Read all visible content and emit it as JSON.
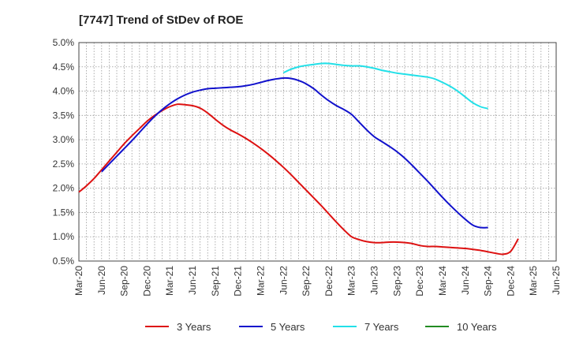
{
  "chart_data": {
    "type": "line",
    "title": "[7747]  Trend of StDev of ROE",
    "xlabel": "",
    "ylabel": "",
    "ylim": [
      0.5,
      5.0
    ],
    "y_ticks": [
      "5.0%",
      "4.5%",
      "4.0%",
      "3.5%",
      "3.0%",
      "2.5%",
      "2.0%",
      "1.5%",
      "1.0%",
      "0.5%"
    ],
    "y_tick_values": [
      5.0,
      4.5,
      4.0,
      3.5,
      3.0,
      2.5,
      2.0,
      1.5,
      1.0,
      0.5
    ],
    "x_ticks": [
      "Mar-20",
      "Jun-20",
      "Sep-20",
      "Dec-20",
      "Mar-21",
      "Jun-21",
      "Sep-21",
      "Dec-21",
      "Mar-22",
      "Jun-22",
      "Sep-22",
      "Dec-22",
      "Mar-23",
      "Jun-23",
      "Sep-23",
      "Dec-23",
      "Mar-24",
      "Jun-24",
      "Sep-24",
      "Dec-24",
      "Mar-25",
      "Jun-25"
    ],
    "grid": true,
    "legend_position": "bottom",
    "series": [
      {
        "name": "3 Years",
        "color": "#dd1111",
        "points": [
          [
            "Mar-20",
            1.92
          ],
          [
            "Apr-20",
            2.05
          ],
          [
            "May-20",
            2.2
          ],
          [
            "Jun-20",
            2.38
          ],
          [
            "Jul-20",
            2.56
          ],
          [
            "Aug-20",
            2.74
          ],
          [
            "Sep-20",
            2.92
          ],
          [
            "Oct-20",
            3.08
          ],
          [
            "Nov-20",
            3.23
          ],
          [
            "Dec-20",
            3.38
          ],
          [
            "Jan-21",
            3.5
          ],
          [
            "Feb-21",
            3.6
          ],
          [
            "Mar-21",
            3.68
          ],
          [
            "Apr-21",
            3.73
          ],
          [
            "May-21",
            3.72
          ],
          [
            "Jun-21",
            3.7
          ],
          [
            "Jul-21",
            3.65
          ],
          [
            "Aug-21",
            3.55
          ],
          [
            "Sep-21",
            3.42
          ],
          [
            "Oct-21",
            3.3
          ],
          [
            "Nov-21",
            3.2
          ],
          [
            "Dec-21",
            3.12
          ],
          [
            "Jan-22",
            3.03
          ],
          [
            "Feb-22",
            2.93
          ],
          [
            "Mar-22",
            2.82
          ],
          [
            "Apr-22",
            2.7
          ],
          [
            "May-22",
            2.57
          ],
          [
            "Jun-22",
            2.43
          ],
          [
            "Jul-22",
            2.28
          ],
          [
            "Aug-22",
            2.12
          ],
          [
            "Sep-22",
            1.96
          ],
          [
            "Oct-22",
            1.8
          ],
          [
            "Nov-22",
            1.64
          ],
          [
            "Dec-22",
            1.47
          ],
          [
            "Jan-23",
            1.3
          ],
          [
            "Feb-23",
            1.14
          ],
          [
            "Mar-23",
            1.0
          ],
          [
            "Apr-23",
            0.94
          ],
          [
            "May-23",
            0.9
          ],
          [
            "Jun-23",
            0.88
          ],
          [
            "Jul-23",
            0.88
          ],
          [
            "Aug-23",
            0.89
          ],
          [
            "Sep-23",
            0.89
          ],
          [
            "Oct-23",
            0.88
          ],
          [
            "Nov-23",
            0.86
          ],
          [
            "Dec-23",
            0.82
          ],
          [
            "Jan-24",
            0.8
          ],
          [
            "Feb-24",
            0.8
          ],
          [
            "Mar-24",
            0.79
          ],
          [
            "Apr-24",
            0.78
          ],
          [
            "May-24",
            0.77
          ],
          [
            "Jun-24",
            0.76
          ],
          [
            "Jul-24",
            0.74
          ],
          [
            "Aug-24",
            0.72
          ],
          [
            "Sep-24",
            0.69
          ],
          [
            "Oct-24",
            0.66
          ],
          [
            "Nov-24",
            0.64
          ],
          [
            "Dec-24",
            0.7
          ],
          [
            "Jan-25",
            0.96
          ]
        ]
      },
      {
        "name": "5 Years",
        "color": "#1111cc",
        "points": [
          [
            "Jun-20",
            2.34
          ],
          [
            "Jul-20",
            2.5
          ],
          [
            "Aug-20",
            2.66
          ],
          [
            "Sep-20",
            2.82
          ],
          [
            "Oct-20",
            2.98
          ],
          [
            "Nov-20",
            3.15
          ],
          [
            "Dec-20",
            3.32
          ],
          [
            "Jan-21",
            3.48
          ],
          [
            "Feb-21",
            3.62
          ],
          [
            "Mar-21",
            3.74
          ],
          [
            "Apr-21",
            3.84
          ],
          [
            "May-21",
            3.92
          ],
          [
            "Jun-21",
            3.98
          ],
          [
            "Jul-21",
            4.02
          ],
          [
            "Aug-21",
            4.05
          ],
          [
            "Sep-21",
            4.06
          ],
          [
            "Oct-21",
            4.07
          ],
          [
            "Nov-21",
            4.08
          ],
          [
            "Dec-21",
            4.09
          ],
          [
            "Jan-22",
            4.11
          ],
          [
            "Feb-22",
            4.14
          ],
          [
            "Mar-22",
            4.18
          ],
          [
            "Apr-22",
            4.22
          ],
          [
            "May-22",
            4.25
          ],
          [
            "Jun-22",
            4.27
          ],
          [
            "Jul-22",
            4.26
          ],
          [
            "Aug-22",
            4.22
          ],
          [
            "Sep-22",
            4.15
          ],
          [
            "Oct-22",
            4.05
          ],
          [
            "Nov-22",
            3.92
          ],
          [
            "Dec-22",
            3.8
          ],
          [
            "Jan-23",
            3.7
          ],
          [
            "Feb-23",
            3.62
          ],
          [
            "Mar-23",
            3.52
          ],
          [
            "Apr-23",
            3.36
          ],
          [
            "May-23",
            3.2
          ],
          [
            "Jun-23",
            3.06
          ],
          [
            "Jul-23",
            2.96
          ],
          [
            "Aug-23",
            2.86
          ],
          [
            "Sep-23",
            2.75
          ],
          [
            "Oct-23",
            2.62
          ],
          [
            "Nov-23",
            2.47
          ],
          [
            "Dec-23",
            2.31
          ],
          [
            "Jan-24",
            2.15
          ],
          [
            "Feb-24",
            1.98
          ],
          [
            "Mar-24",
            1.81
          ],
          [
            "Apr-24",
            1.65
          ],
          [
            "May-24",
            1.5
          ],
          [
            "Jun-24",
            1.36
          ],
          [
            "Jul-24",
            1.24
          ],
          [
            "Aug-24",
            1.19
          ],
          [
            "Sep-24",
            1.19
          ]
        ]
      },
      {
        "name": "7 Years",
        "color": "#22e0e8",
        "points": [
          [
            "Jun-22",
            4.38
          ],
          [
            "Jul-22",
            4.45
          ],
          [
            "Aug-22",
            4.5
          ],
          [
            "Sep-22",
            4.53
          ],
          [
            "Oct-22",
            4.55
          ],
          [
            "Nov-22",
            4.57
          ],
          [
            "Dec-22",
            4.57
          ],
          [
            "Jan-23",
            4.55
          ],
          [
            "Feb-23",
            4.53
          ],
          [
            "Mar-23",
            4.52
          ],
          [
            "Apr-23",
            4.52
          ],
          [
            "May-23",
            4.5
          ],
          [
            "Jun-23",
            4.47
          ],
          [
            "Jul-23",
            4.43
          ],
          [
            "Aug-23",
            4.4
          ],
          [
            "Sep-23",
            4.37
          ],
          [
            "Oct-23",
            4.35
          ],
          [
            "Nov-23",
            4.33
          ],
          [
            "Dec-23",
            4.31
          ],
          [
            "Jan-24",
            4.29
          ],
          [
            "Feb-24",
            4.25
          ],
          [
            "Mar-24",
            4.18
          ],
          [
            "Apr-24",
            4.1
          ],
          [
            "May-24",
            4.0
          ],
          [
            "Jun-24",
            3.88
          ],
          [
            "Jul-24",
            3.76
          ],
          [
            "Aug-24",
            3.68
          ],
          [
            "Sep-24",
            3.64
          ]
        ]
      },
      {
        "name": "10 Years",
        "color": "#228b22",
        "points": []
      }
    ]
  }
}
